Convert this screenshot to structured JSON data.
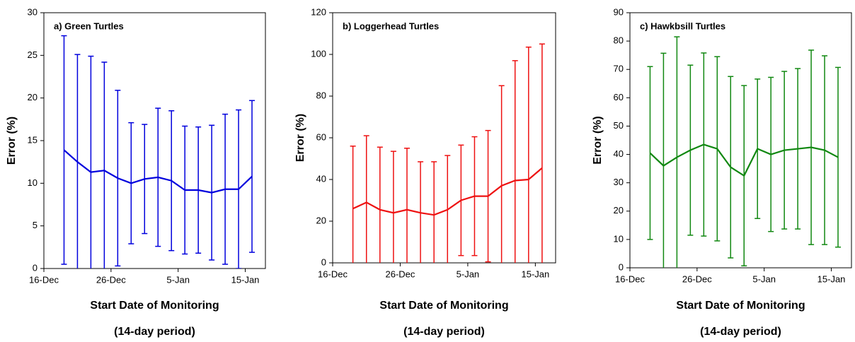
{
  "chart_data": [
    {
      "type": "line",
      "title": "a) Green Turtles",
      "xlabel": "Start Date of Monitoring",
      "xlabel_note": "(14-day period)",
      "ylabel": "Error (%)",
      "x": [
        3,
        5,
        7,
        9,
        11,
        13,
        15,
        17,
        19,
        21,
        23,
        25,
        27,
        29,
        31
      ],
      "values": [
        13.9,
        12.5,
        11.3,
        11.5,
        10.6,
        10.0,
        10.5,
        10.7,
        10.3,
        9.2,
        9.2,
        8.9,
        9.3,
        9.3,
        10.8
      ],
      "errors": [
        13.4,
        12.6,
        13.6,
        12.7,
        10.3,
        7.1,
        6.4,
        8.1,
        8.2,
        7.5,
        7.4,
        7.9,
        8.8,
        9.3,
        8.9
      ],
      "color": "#0000dd",
      "xlim": [
        0,
        33
      ],
      "ylim": [
        0,
        30
      ],
      "yticks": [
        0,
        5,
        10,
        15,
        20,
        25,
        30
      ],
      "xticks": [
        {
          "value": 0,
          "label": "16-Dec"
        },
        {
          "value": 10,
          "label": "26-Dec"
        },
        {
          "value": 20,
          "label": "5-Jan"
        },
        {
          "value": 30,
          "label": "15-Jan"
        }
      ]
    },
    {
      "type": "line",
      "title": "b) Loggerhead Turtles",
      "xlabel": "Start Date of Monitoring",
      "xlabel_note": "(14-day period)",
      "ylabel": "Error (%)",
      "x": [
        3,
        5,
        7,
        9,
        11,
        13,
        15,
        17,
        19,
        21,
        23,
        25,
        27,
        29,
        31
      ],
      "values": [
        26,
        29,
        25.5,
        24,
        25.5,
        24,
        23,
        25.5,
        30,
        32,
        32,
        37,
        39.5,
        40,
        45.5
      ],
      "errors": [
        30,
        32,
        30,
        29.5,
        29.5,
        24.5,
        25.5,
        26,
        26.5,
        28.5,
        31.5,
        48,
        57.5,
        63.5,
        59.5
      ],
      "color": "#ee1111",
      "xlim": [
        0,
        33
      ],
      "ylim": [
        0,
        120
      ],
      "yticks": [
        0,
        20,
        40,
        60,
        80,
        100,
        120
      ],
      "xticks": [
        {
          "value": 0,
          "label": "16-Dec"
        },
        {
          "value": 10,
          "label": "26-Dec"
        },
        {
          "value": 20,
          "label": "5-Jan"
        },
        {
          "value": 30,
          "label": "15-Jan"
        }
      ]
    },
    {
      "type": "line",
      "title": "c) Hawkbsill Turtles",
      "xlabel": "Start Date of Monitoring",
      "xlabel_note": "(14-day period)",
      "ylabel": "Error (%)",
      "x": [
        3,
        5,
        7,
        9,
        11,
        13,
        15,
        17,
        19,
        21,
        23,
        25,
        27,
        29,
        31
      ],
      "values": [
        40.5,
        36,
        39,
        41.5,
        43.5,
        42,
        35.5,
        32.5,
        42,
        40,
        41.5,
        42,
        42.5,
        41.5,
        39
      ],
      "errors": [
        30.5,
        39.7,
        42.5,
        30,
        32.3,
        32.5,
        32,
        31.8,
        24.6,
        27.2,
        27.8,
        28.3,
        34.3,
        33.3,
        31.7
      ],
      "color": "#118811",
      "xlim": [
        0,
        33
      ],
      "ylim": [
        0,
        90
      ],
      "yticks": [
        0,
        10,
        20,
        30,
        40,
        50,
        60,
        70,
        80,
        90
      ],
      "xticks": [
        {
          "value": 0,
          "label": "16-Dec"
        },
        {
          "value": 10,
          "label": "26-Dec"
        },
        {
          "value": 20,
          "label": "5-Jan"
        },
        {
          "value": 30,
          "label": "15-Jan"
        }
      ]
    }
  ]
}
